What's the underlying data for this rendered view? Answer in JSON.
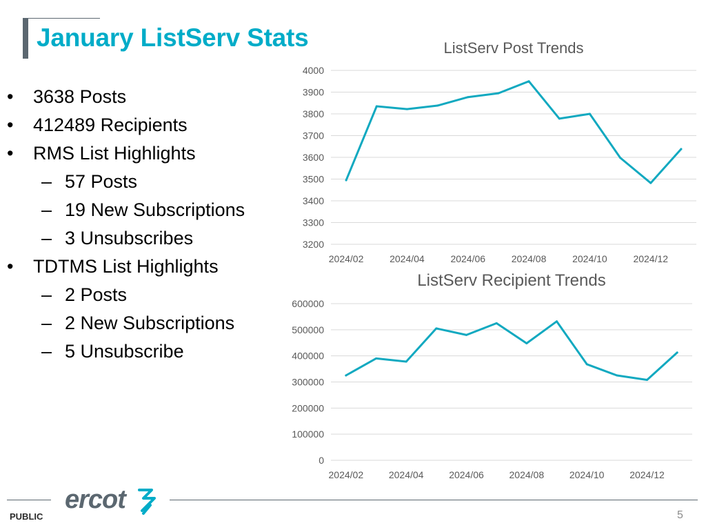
{
  "slide": {
    "title": "January ListServ Stats",
    "footer_label": "PUBLIC",
    "page_number": "5",
    "logo_text": "ercot"
  },
  "bullets": [
    {
      "level": 0,
      "marker": "•",
      "text": "3638 Posts"
    },
    {
      "level": 0,
      "marker": "•",
      "text": "412489 Recipients"
    },
    {
      "level": 0,
      "marker": "•",
      "text": "RMS List Highlights"
    },
    {
      "level": 1,
      "marker": "–",
      "text": "57 Posts"
    },
    {
      "level": 1,
      "marker": "–",
      "text": "19 New Subscriptions"
    },
    {
      "level": 1,
      "marker": "–",
      "text": "3 Unsubscribes"
    },
    {
      "level": 0,
      "marker": "•",
      "text": "TDTMS List Highlights"
    },
    {
      "level": 1,
      "marker": "–",
      "text": "2 Posts"
    },
    {
      "level": 1,
      "marker": "–",
      "text": "2 New Subscriptions"
    },
    {
      "level": 1,
      "marker": "–",
      "text": "5 Unsubscribe"
    }
  ],
  "colors": {
    "title": "#00acc8",
    "line": "#12a9c0",
    "gridline": "#d9d9d9",
    "axis_text": "#595959",
    "footer_rule": "#5b6770"
  },
  "chart_data": [
    {
      "type": "line",
      "title": "ListServ Post Trends",
      "x": [
        "2024/02",
        "2024/03",
        "2024/04",
        "2024/05",
        "2024/06",
        "2024/07",
        "2024/08",
        "2024/09",
        "2024/10",
        "2024/11",
        "2024/12",
        "2025/01"
      ],
      "x_tick_labels": [
        "2024/02",
        "2024/04",
        "2024/06",
        "2024/08",
        "2024/10",
        "2024/12"
      ],
      "values": [
        3495,
        3835,
        3822,
        3838,
        3877,
        3895,
        3950,
        3778,
        3800,
        3598,
        3482,
        3638
      ],
      "ylim": [
        3200,
        4000
      ],
      "yticks": [
        3200,
        3300,
        3400,
        3500,
        3600,
        3700,
        3800,
        3900,
        4000
      ],
      "grid": true,
      "legend": "none"
    },
    {
      "type": "line",
      "title": "ListServ Recipient Trends",
      "x": [
        "2024/02",
        "2024/03",
        "2024/04",
        "2024/05",
        "2024/06",
        "2024/07",
        "2024/08",
        "2024/09",
        "2024/10",
        "2024/11",
        "2024/12",
        "2025/01"
      ],
      "x_tick_labels": [
        "2024/02",
        "2024/04",
        "2024/06",
        "2024/08",
        "2024/10",
        "2024/12"
      ],
      "values": [
        325000,
        390000,
        378000,
        505000,
        480000,
        525000,
        448000,
        532000,
        368000,
        325000,
        308000,
        412489
      ],
      "ylim": [
        0,
        600000
      ],
      "yticks": [
        0,
        100000,
        200000,
        300000,
        400000,
        500000,
        600000
      ],
      "grid": true,
      "legend": "none"
    }
  ]
}
